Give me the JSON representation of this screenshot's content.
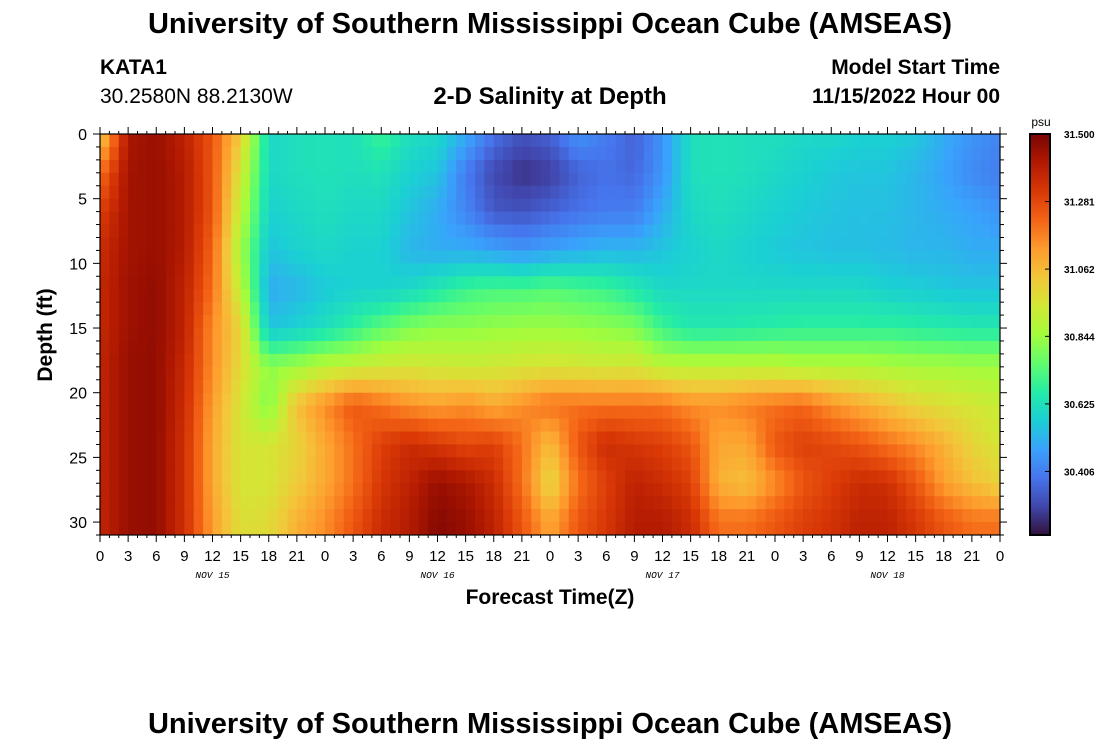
{
  "header": {
    "title": "University of Southern Mississippi Ocean Cube (AMSEAS)",
    "station": "KATA1",
    "coordinates": "30.2580N  88.2130W",
    "plot_title": "2-D Salinity at Depth",
    "model_start_label": "Model Start Time",
    "model_start_value": "11/15/2022 Hour 00"
  },
  "footer": {
    "title": "University of Southern Mississippi Ocean Cube (AMSEAS)"
  },
  "colors": {
    "colormap": [
      "#30123b",
      "#4145ab",
      "#4675ed",
      "#39a2fc",
      "#1bcfd4",
      "#24eca6",
      "#61fc6c",
      "#a4fc3b",
      "#d1e834",
      "#f3c63a",
      "#fe9b2d",
      "#f36315",
      "#d93806",
      "#b11901",
      "#7a0402"
    ],
    "tick_mark": "#000000"
  },
  "chart_data": {
    "type": "heatmap",
    "xlabel": "Forecast Time(Z)",
    "ylabel": "Depth (ft)",
    "x_range_hours": [
      0,
      96
    ],
    "y_range_ft": [
      0,
      31
    ],
    "x_tick_labels": [
      "0",
      "3",
      "6",
      "9",
      "12",
      "15",
      "18",
      "21",
      "0",
      "3",
      "6",
      "9",
      "12",
      "15",
      "18",
      "21",
      "0",
      "3",
      "6",
      "9",
      "12",
      "15",
      "18",
      "21",
      "0",
      "3",
      "6",
      "9",
      "12",
      "15",
      "18",
      "21",
      "0"
    ],
    "day_labels": [
      "NOV 15",
      "NOV 16",
      "NOV 17",
      "NOV 18"
    ],
    "y_ticks": [
      0,
      5,
      10,
      15,
      20,
      25,
      30
    ],
    "y_tick_labels": [
      "0",
      "5",
      "10",
      "15",
      "20",
      "25",
      "30"
    ],
    "colorbar": {
      "unit": "psu",
      "min": 30.2,
      "max": 31.5,
      "ticks": [
        31.5,
        31.281,
        31.062,
        30.844,
        30.625,
        30.406
      ],
      "tick_labels": [
        "31.500",
        "31.281",
        "31.062",
        "30.844",
        "30.625",
        "30.406"
      ]
    },
    "depth_levels_ft": [
      0,
      3,
      6,
      9,
      12,
      15,
      18,
      21,
      24,
      27,
      30
    ],
    "forecast_hours": [
      0,
      3,
      6,
      9,
      12,
      15,
      18,
      21,
      24,
      27,
      30,
      33,
      36,
      39,
      42,
      45,
      48,
      51,
      54,
      57,
      60,
      63,
      66,
      69,
      72,
      75,
      78,
      81,
      84,
      87,
      90,
      93,
      96
    ],
    "salinity_psu": [
      [
        31.0,
        31.42,
        31.45,
        31.38,
        31.25,
        31.02,
        30.6,
        30.62,
        30.63,
        30.62,
        30.7,
        30.62,
        30.6,
        30.5,
        30.38,
        30.32,
        30.35,
        30.45,
        30.4,
        30.35,
        30.45,
        30.62,
        30.63,
        30.62,
        30.62,
        30.6,
        30.6,
        30.58,
        30.58,
        30.56,
        30.5,
        30.45,
        30.42
      ],
      [
        31.2,
        31.43,
        31.45,
        31.4,
        31.25,
        30.95,
        30.6,
        30.62,
        30.63,
        30.62,
        30.63,
        30.58,
        30.55,
        30.4,
        30.3,
        30.26,
        30.28,
        30.35,
        30.38,
        30.36,
        30.45,
        30.62,
        30.63,
        30.62,
        30.6,
        30.58,
        30.56,
        30.55,
        30.55,
        30.52,
        30.48,
        30.43,
        30.4
      ],
      [
        31.3,
        31.43,
        31.45,
        31.4,
        31.25,
        30.9,
        30.58,
        30.6,
        30.62,
        30.6,
        30.6,
        30.55,
        30.5,
        30.42,
        30.33,
        30.32,
        30.35,
        30.38,
        30.4,
        30.4,
        30.5,
        30.6,
        30.62,
        30.6,
        30.58,
        30.56,
        30.55,
        30.54,
        30.54,
        30.52,
        30.5,
        30.48,
        30.45
      ],
      [
        31.35,
        31.43,
        31.45,
        31.4,
        31.22,
        30.85,
        30.55,
        30.58,
        30.6,
        30.58,
        30.58,
        30.52,
        30.5,
        30.5,
        30.48,
        30.45,
        30.48,
        30.5,
        30.52,
        30.52,
        30.55,
        30.58,
        30.6,
        30.58,
        30.56,
        30.55,
        30.54,
        30.54,
        30.53,
        30.52,
        30.52,
        30.5,
        30.5
      ],
      [
        31.36,
        31.44,
        31.46,
        31.38,
        31.2,
        30.9,
        30.5,
        30.52,
        30.56,
        30.58,
        30.58,
        30.6,
        30.65,
        30.7,
        30.72,
        30.72,
        30.74,
        30.72,
        30.7,
        30.65,
        30.6,
        30.6,
        30.6,
        30.6,
        30.6,
        30.6,
        30.6,
        30.6,
        30.58,
        30.57,
        30.56,
        30.55,
        30.55
      ],
      [
        31.36,
        31.44,
        31.46,
        31.38,
        31.15,
        31.0,
        30.55,
        30.58,
        30.62,
        30.68,
        30.75,
        30.8,
        30.82,
        30.82,
        30.83,
        30.84,
        30.84,
        30.83,
        30.82,
        30.8,
        30.7,
        30.65,
        30.65,
        30.66,
        30.67,
        30.68,
        30.68,
        30.68,
        30.68,
        30.67,
        30.66,
        30.65,
        30.65
      ],
      [
        31.37,
        31.45,
        31.46,
        31.36,
        31.15,
        30.98,
        30.82,
        30.85,
        30.9,
        30.92,
        30.94,
        30.95,
        30.94,
        30.93,
        30.94,
        30.95,
        30.96,
        30.95,
        30.94,
        30.95,
        30.9,
        30.9,
        30.9,
        30.9,
        30.9,
        30.88,
        30.88,
        30.88,
        30.87,
        30.86,
        30.86,
        30.85,
        30.85
      ],
      [
        31.37,
        31.45,
        31.46,
        31.35,
        31.12,
        30.95,
        30.8,
        31.05,
        31.15,
        31.25,
        31.2,
        31.15,
        31.12,
        31.15,
        31.1,
        31.15,
        31.2,
        31.2,
        31.2,
        31.2,
        31.2,
        31.15,
        31.15,
        31.18,
        31.2,
        31.22,
        31.15,
        31.1,
        31.05,
        31.0,
        30.97,
        30.95,
        30.92
      ],
      [
        31.37,
        31.45,
        31.46,
        31.34,
        31.1,
        30.95,
        30.95,
        31.0,
        31.1,
        31.2,
        31.3,
        31.35,
        31.32,
        31.28,
        31.3,
        31.2,
        31.05,
        31.25,
        31.35,
        31.32,
        31.3,
        31.25,
        31.1,
        31.1,
        31.25,
        31.3,
        31.28,
        31.25,
        31.2,
        31.15,
        31.08,
        31.0,
        30.95
      ],
      [
        31.37,
        31.45,
        31.46,
        31.34,
        31.1,
        30.95,
        30.95,
        31.02,
        31.1,
        31.2,
        31.32,
        31.38,
        31.45,
        31.42,
        31.35,
        31.2,
        30.98,
        31.2,
        31.3,
        31.38,
        31.35,
        31.3,
        31.08,
        31.05,
        31.15,
        31.25,
        31.3,
        31.35,
        31.34,
        31.25,
        31.12,
        31.05,
        31.0
      ],
      [
        31.37,
        31.45,
        31.46,
        31.34,
        31.12,
        30.97,
        30.98,
        31.08,
        31.15,
        31.25,
        31.35,
        31.4,
        31.48,
        31.45,
        31.38,
        31.25,
        31.1,
        31.25,
        31.32,
        31.4,
        31.4,
        31.35,
        31.2,
        31.2,
        31.25,
        31.3,
        31.33,
        31.38,
        31.38,
        31.32,
        31.25,
        31.2,
        31.2
      ]
    ]
  }
}
